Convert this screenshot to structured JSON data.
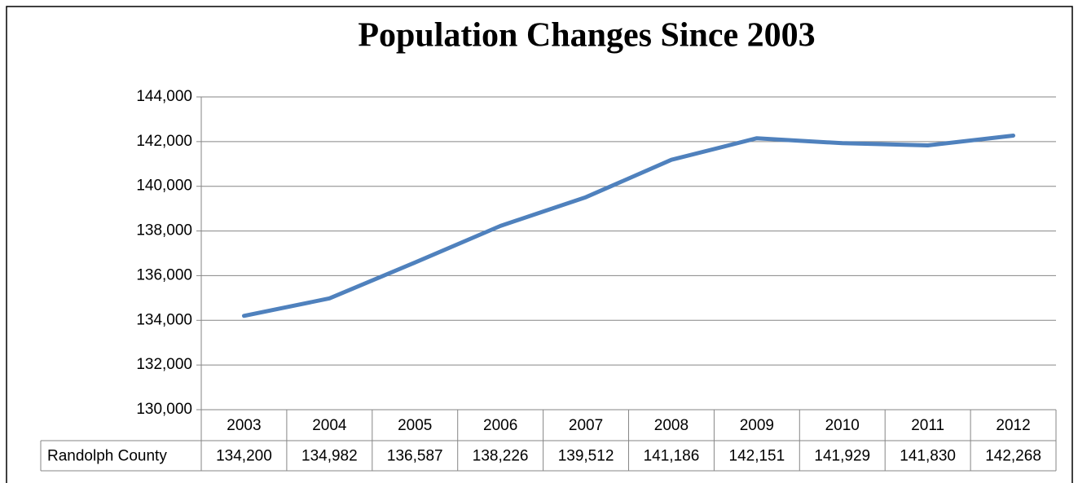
{
  "chart_data": {
    "type": "line",
    "title": "Population Changes Since 2003",
    "categories": [
      "2003",
      "2004",
      "2005",
      "2006",
      "2007",
      "2008",
      "2009",
      "2010",
      "2011",
      "2012"
    ],
    "series": [
      {
        "name": "Randolph County",
        "color": "#4f81bd",
        "values": [
          134200,
          134982,
          136587,
          138226,
          139512,
          141186,
          142151,
          141929,
          141830,
          142268
        ],
        "value_labels": [
          "134,200",
          "134,982",
          "136,587",
          "138,226",
          "139,512",
          "141,186",
          "142,151",
          "141,929",
          "141,830",
          "142,268"
        ]
      }
    ],
    "ylim": [
      130000,
      144000
    ],
    "yticks": [
      {
        "value": 130000,
        "label": "130,000"
      },
      {
        "value": 132000,
        "label": "132,000"
      },
      {
        "value": 134000,
        "label": "134,000"
      },
      {
        "value": 136000,
        "label": "136,000"
      },
      {
        "value": 138000,
        "label": "138,000"
      },
      {
        "value": 140000,
        "label": "140,000"
      },
      {
        "value": 142000,
        "label": "142,000"
      },
      {
        "value": 144000,
        "label": "144,000"
      }
    ],
    "grid": true
  }
}
